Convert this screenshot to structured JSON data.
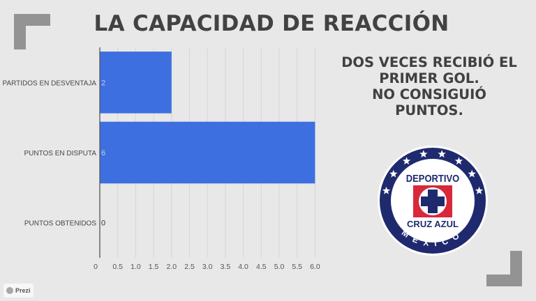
{
  "slide": {
    "title": "LA CAPACIDAD DE REACCIÓN",
    "side_text": [
      "DOS VECES RECIBIÓ EL",
      "PRIMER GOL.",
      "NO CONSIGUIÓ",
      "PUNTOS."
    ],
    "logo": {
      "top_text": "DEPORTIVO",
      "bottom_text": "CRUZ AZUL",
      "ring_text": "MEXICO",
      "stars": 8
    },
    "watermark": "Prezi",
    "colors": {
      "background": "#e8e8e8",
      "bar": "#3d6fe0",
      "bracket": "#939393",
      "logo_blue": "#1f2a6e",
      "logo_red": "#d9283a"
    }
  },
  "chart_data": {
    "type": "bar",
    "orientation": "horizontal",
    "title": "",
    "categories": [
      "PARTIDOS EN DESVENTAJA",
      "PUNTOS EN DISPUTA",
      "PUNTOS OBTENIDOS"
    ],
    "values": [
      2,
      6,
      0
    ],
    "value_labels": [
      "2",
      "6",
      "0"
    ],
    "xlim": [
      0,
      6.2
    ],
    "xticks": [
      "0",
      "0.5",
      "1.0",
      "1.5",
      "2.0",
      "2.5",
      "3.0",
      "3.5",
      "4.0",
      "4.5",
      "5.0",
      "5.5",
      "6.0"
    ],
    "xtick_values": [
      0,
      0.5,
      1,
      1.5,
      2,
      2.5,
      3,
      3.5,
      4,
      4.5,
      5,
      5.5,
      6
    ],
    "grid": true,
    "legend": "none",
    "xlabel": "",
    "ylabel": ""
  }
}
